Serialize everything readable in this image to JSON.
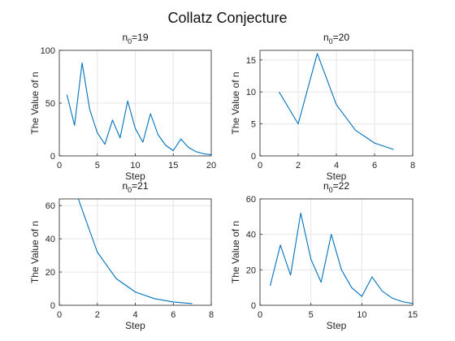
{
  "figure": {
    "title": "Collatz Conjecture"
  },
  "chart_data": [
    {
      "type": "line",
      "title": "n0=19",
      "title_base": "n",
      "title_sub": "0",
      "title_rest": "=19",
      "xlabel": "Step",
      "ylabel": "The Value of n",
      "xlim": [
        0,
        20
      ],
      "ylim": [
        0,
        100
      ],
      "xticks": [
        0,
        5,
        10,
        15,
        20
      ],
      "yticks": [
        0,
        50,
        100
      ],
      "grid": true,
      "color": "#0072BD",
      "x": [
        1,
        2,
        3,
        4,
        5,
        6,
        7,
        8,
        9,
        10,
        11,
        12,
        13,
        14,
        15,
        16,
        17,
        18,
        19,
        20
      ],
      "y": [
        58,
        29,
        88,
        44,
        22,
        11,
        34,
        17,
        52,
        26,
        13,
        40,
        20,
        10,
        5,
        16,
        8,
        4,
        2,
        1
      ]
    },
    {
      "type": "line",
      "title": "n0=20",
      "title_base": "n",
      "title_sub": "0",
      "title_rest": "=20",
      "xlabel": "Step",
      "ylabel": "The Value of n",
      "xlim": [
        0,
        8
      ],
      "ylim": [
        0,
        16.5
      ],
      "xticks": [
        0,
        2,
        4,
        6,
        8
      ],
      "yticks": [
        0,
        5,
        10,
        15
      ],
      "grid": true,
      "color": "#0072BD",
      "x": [
        1,
        2,
        3,
        4,
        5,
        6,
        7
      ],
      "y": [
        10,
        5,
        16,
        8,
        4,
        2,
        1
      ]
    },
    {
      "type": "line",
      "title": "n0=21",
      "title_base": "n",
      "title_sub": "0",
      "title_rest": "=21",
      "xlabel": "Step",
      "ylabel": "The Value of n",
      "xlim": [
        0,
        8
      ],
      "ylim": [
        0,
        64
      ],
      "xticks": [
        0,
        2,
        4,
        6,
        8
      ],
      "yticks": [
        0,
        20,
        40,
        60
      ],
      "grid": true,
      "color": "#0072BD",
      "x": [
        1,
        2,
        3,
        4,
        5,
        6,
        7
      ],
      "y": [
        64,
        32,
        16,
        8,
        4,
        2,
        1
      ]
    },
    {
      "type": "line",
      "title": "n0=22",
      "title_base": "n",
      "title_sub": "0",
      "title_rest": "=22",
      "xlabel": "Step",
      "ylabel": "The Value of n",
      "xlim": [
        0,
        15
      ],
      "ylim": [
        0,
        60
      ],
      "xticks": [
        0,
        5,
        10,
        15
      ],
      "yticks": [
        0,
        20,
        40,
        60
      ],
      "grid": true,
      "color": "#0072BD",
      "x": [
        1,
        2,
        3,
        4,
        5,
        6,
        7,
        8,
        9,
        10,
        11,
        12,
        13,
        14,
        15
      ],
      "y": [
        11,
        34,
        17,
        52,
        26,
        13,
        40,
        20,
        10,
        5,
        16,
        8,
        4,
        2,
        1
      ]
    }
  ]
}
